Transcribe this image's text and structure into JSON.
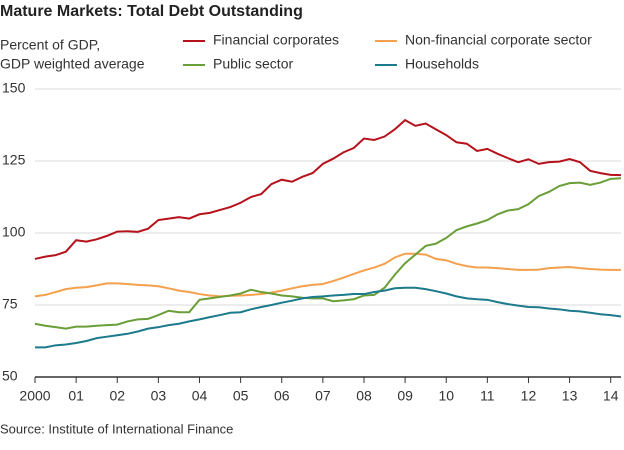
{
  "chart_data": {
    "type": "line",
    "title": "Mature Markets: Total Debt Outstanding",
    "ylabel": [
      "Percent of GDP,",
      "GDP weighted average"
    ],
    "source": "Source: Institute of International Finance",
    "x": [
      2000,
      2000.25,
      2000.5,
      2000.75,
      2001,
      2001.25,
      2001.5,
      2001.75,
      2002,
      2002.25,
      2002.5,
      2002.75,
      2003,
      2003.25,
      2003.5,
      2003.75,
      2004,
      2004.25,
      2004.5,
      2004.75,
      2005,
      2005.25,
      2005.5,
      2005.75,
      2006,
      2006.25,
      2006.5,
      2006.75,
      2007,
      2007.25,
      2007.5,
      2007.75,
      2008,
      2008.25,
      2008.5,
      2008.75,
      2009,
      2009.25,
      2009.5,
      2009.75,
      2010,
      2010.25,
      2010.5,
      2010.75,
      2011,
      2011.25,
      2011.5,
      2011.75,
      2012,
      2012.25,
      2012.5,
      2012.75,
      2013,
      2013.25,
      2013.5,
      2013.75,
      2014,
      2014.25
    ],
    "series": [
      {
        "name": "Financial corporates",
        "color": "#b5121b",
        "values": [
          91,
          91.8,
          92.3,
          93.5,
          97.5,
          97,
          97.8,
          99,
          100.5,
          100.6,
          100.4,
          101.5,
          104.5,
          105,
          105.5,
          105,
          106.5,
          107,
          108,
          109,
          110.5,
          112.5,
          113.5,
          117,
          118.5,
          117.8,
          119.5,
          120.8,
          124,
          125.8,
          128,
          129.5,
          132.8,
          132.3,
          133.5,
          136,
          139.2,
          137.2,
          138,
          136,
          134,
          131.5,
          131,
          128.5,
          129.2,
          127.5,
          126,
          124.6,
          125.6,
          124,
          124.6,
          124.8,
          125.7,
          124.6,
          121.6,
          120.8,
          120.2,
          120.1
        ]
      },
      {
        "name": "Non-financial corporate sector",
        "color": "#f4a04c",
        "values": [
          78,
          78.5,
          79.5,
          80.5,
          81,
          81.2,
          81.8,
          82.5,
          82.5,
          82.3,
          82,
          81.8,
          81.5,
          80.8,
          80,
          79.5,
          78.8,
          78.3,
          78,
          78.2,
          78.3,
          78.5,
          78.8,
          79.3,
          80,
          80.8,
          81.5,
          82,
          82.3,
          83.3,
          84.5,
          85.8,
          87,
          88,
          89.3,
          91.5,
          92.8,
          92.8,
          92.5,
          91,
          90.5,
          89.3,
          88.5,
          88,
          88,
          87.8,
          87.5,
          87.2,
          87.2,
          87.3,
          87.8,
          88,
          88.2,
          87.8,
          87.5,
          87.3,
          87.2,
          87.2
        ]
      },
      {
        "name": "Public sector",
        "color": "#6a9e38",
        "values": [
          68.5,
          67.8,
          67.3,
          66.8,
          67.5,
          67.5,
          67.8,
          68,
          68.2,
          69.3,
          70,
          70.2,
          71.5,
          73,
          72.5,
          72.5,
          76.8,
          77.3,
          77.8,
          78.3,
          79,
          80.3,
          79.5,
          79,
          78.3,
          78,
          77.5,
          77.3,
          77.3,
          76.3,
          76.6,
          77,
          78.3,
          78.5,
          81,
          85.5,
          89.5,
          92.5,
          95.5,
          96.3,
          98.3,
          101,
          102.3,
          103.3,
          104.5,
          106.5,
          107.8,
          108.3,
          110,
          112.8,
          114.3,
          116.3,
          117.3,
          117.5,
          116.7,
          117.5,
          118.8,
          119
        ]
      },
      {
        "name": "Households",
        "color": "#1b7a8c",
        "values": [
          60.3,
          60.3,
          61,
          61.3,
          61.8,
          62.5,
          63.5,
          64,
          64.5,
          65,
          65.8,
          66.8,
          67.3,
          68,
          68.5,
          69.3,
          70,
          70.8,
          71.5,
          72.3,
          72.5,
          73.5,
          74.3,
          75,
          75.8,
          76.5,
          77.3,
          77.8,
          78,
          78.3,
          78.5,
          78.8,
          78.8,
          79.5,
          80,
          80.8,
          81,
          81,
          80.5,
          79.8,
          79,
          78,
          77.3,
          77,
          76.8,
          76,
          75.3,
          74.8,
          74.3,
          74.2,
          73.8,
          73.5,
          73,
          72.8,
          72.3,
          71.8,
          71.5,
          71
        ]
      }
    ],
    "xlim": [
      2000,
      2014.25
    ],
    "ylim": [
      50,
      150
    ],
    "yticks": [
      50,
      75,
      100,
      125,
      150
    ],
    "xticks": [
      {
        "value": 2000,
        "label": "2000"
      },
      {
        "value": 2001,
        "label": "01"
      },
      {
        "value": 2002,
        "label": "02"
      },
      {
        "value": 2003,
        "label": "03"
      },
      {
        "value": 2004,
        "label": "04"
      },
      {
        "value": 2005,
        "label": "05"
      },
      {
        "value": 2006,
        "label": "06"
      },
      {
        "value": 2007,
        "label": "07"
      },
      {
        "value": 2008,
        "label": "08"
      },
      {
        "value": 2009,
        "label": "09"
      },
      {
        "value": 2010,
        "label": "10"
      },
      {
        "value": 2011,
        "label": "11"
      },
      {
        "value": 2012,
        "label": "12"
      },
      {
        "value": 2013,
        "label": "13"
      },
      {
        "value": 2014,
        "label": "14"
      }
    ],
    "grid": true
  }
}
